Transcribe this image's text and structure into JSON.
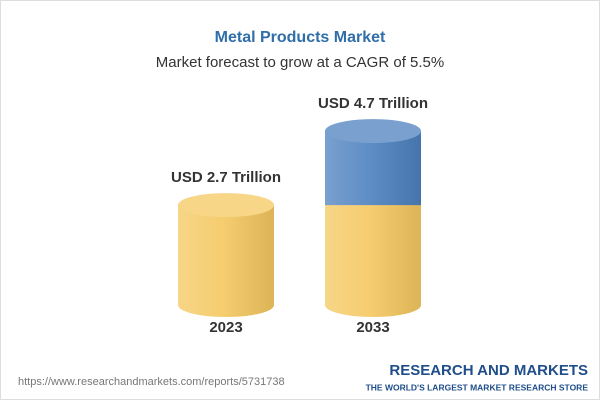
{
  "chart_data": {
    "type": "bar",
    "title": "Metal Products Market",
    "subtitle": "Market forecast to grow at a CAGR of 5.5%",
    "categories": [
      "2023",
      "2033"
    ],
    "values": [
      2.7,
      4.7
    ],
    "value_labels": [
      "USD 2.7 Trillion",
      "USD 4.7 Trillion"
    ],
    "color": "#f5c860",
    "growth_color": "#4d81bf"
  },
  "footer": {
    "url": "https://www.researchandmarkets.com/reports/5731738",
    "brand": "RESEARCH AND MARKETS",
    "tagline": "THE WORLD'S LARGEST MARKET RESEARCH STORE"
  }
}
